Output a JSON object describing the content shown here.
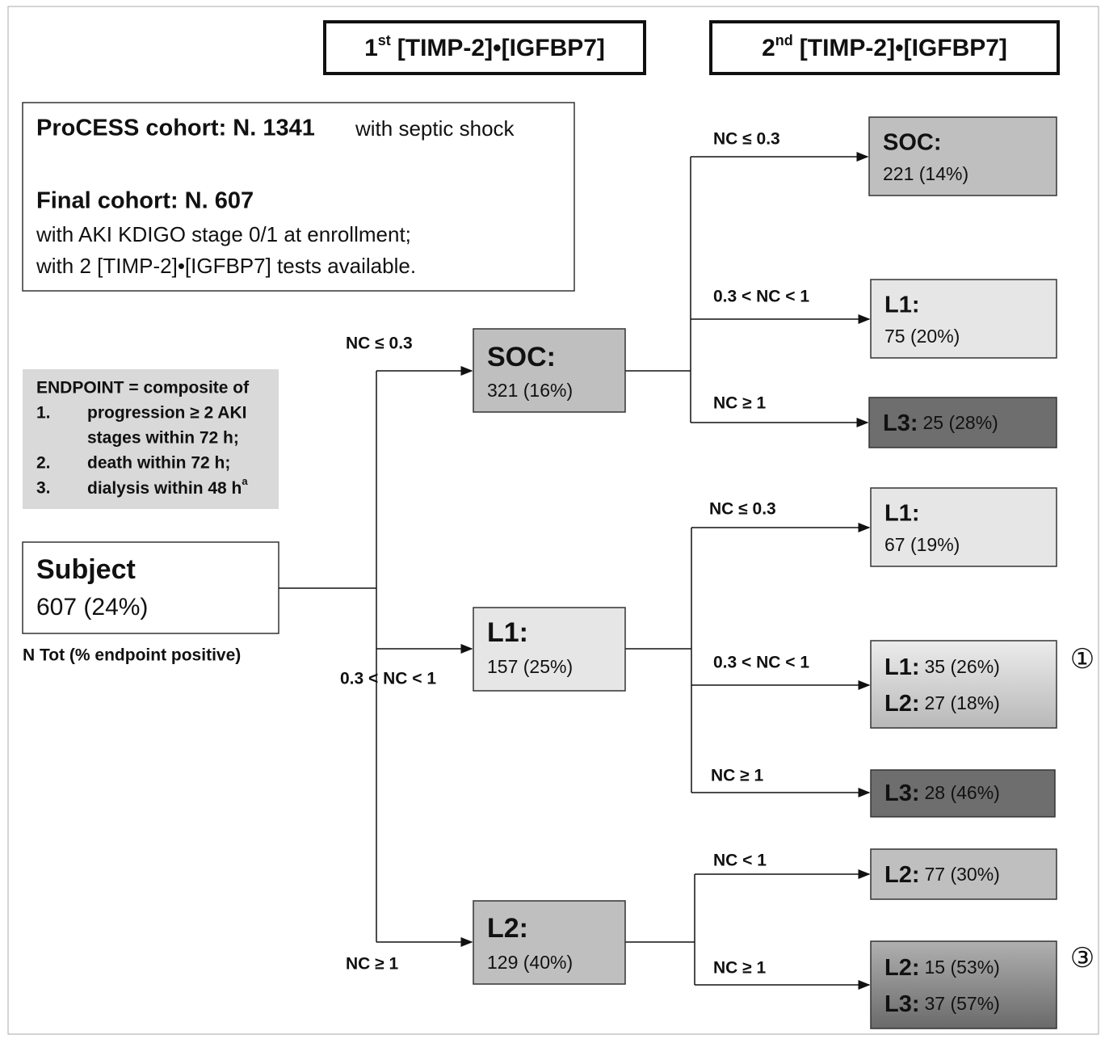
{
  "headers": [
    {
      "ordinal": "1",
      "suffix": "st",
      "title": "[TIMP-2]•[IGFBP7]"
    },
    {
      "ordinal": "2",
      "suffix": "nd",
      "title": "[TIMP-2]•[IGFBP7]"
    }
  ],
  "cohort": {
    "process": "ProCESS cohort: N. 1341",
    "process_note": "with septic shock",
    "final": "Final cohort: N. 607",
    "final_notes": [
      "with AKI KDIGO stage 0/1 at enrollment;",
      "with 2 [TIMP-2]•[IGFBP7] tests available."
    ]
  },
  "endpoint": {
    "title": "ENDPOINT = composite of",
    "items": [
      {
        "number": "1.",
        "lines": [
          "progression ≥ 2 AKI",
          "stages within 72 h;"
        ]
      },
      {
        "number": "2.",
        "lines": [
          "death within 72 h;"
        ]
      },
      {
        "number": "3.",
        "lines": [
          "dialysis within 48 h"
        ],
        "superscript": "a"
      }
    ]
  },
  "subject": {
    "label": "Subject",
    "value": "607 (24%)",
    "caption": "N Tot (% endpoint positive)"
  },
  "tree": [
    {
      "condition": "NC ≤ 0.3",
      "node": {
        "label": "SOC:",
        "value": "321 (16%)"
      },
      "children": [
        {
          "condition": "NC ≤ 0.3",
          "entries": [
            {
              "label": "SOC:",
              "value": "221 (14%)"
            }
          ]
        },
        {
          "condition": "0.3 < NC < 1",
          "entries": [
            {
              "label": "L1:",
              "value": "75 (20%)"
            }
          ]
        },
        {
          "condition": "NC ≥ 1",
          "entries": [
            {
              "label": "L3:",
              "value": "25 (28%)"
            }
          ]
        }
      ]
    },
    {
      "condition": "0.3 < NC < 1",
      "node": {
        "label": "L1:",
        "value": "157 (25%)"
      },
      "children": [
        {
          "condition": "NC ≤ 0.3",
          "entries": [
            {
              "label": "L1:",
              "value": "67 (19%)"
            }
          ]
        },
        {
          "condition": "0.3 < NC < 1",
          "entries": [
            {
              "label": "L1:",
              "value": "35 (26%)"
            },
            {
              "label": "L2:",
              "value": "27 (18%)"
            }
          ],
          "marker": "①"
        },
        {
          "condition": "NC ≥ 1",
          "entries": [
            {
              "label": "L3:",
              "value": "28 (46%)"
            }
          ]
        }
      ]
    },
    {
      "condition": "NC ≥ 1",
      "node": {
        "label": "L2:",
        "value": "129 (40%)"
      },
      "children": [
        {
          "condition": "NC < 1",
          "entries": [
            {
              "label": "L2:",
              "value": "77 (30%)"
            }
          ]
        },
        {
          "condition": "NC ≥ 1",
          "entries": [
            {
              "label": "L2:",
              "value": "15 (53%)"
            },
            {
              "label": "L3:",
              "value": "37 (57%)"
            }
          ],
          "marker": "③"
        }
      ]
    }
  ]
}
